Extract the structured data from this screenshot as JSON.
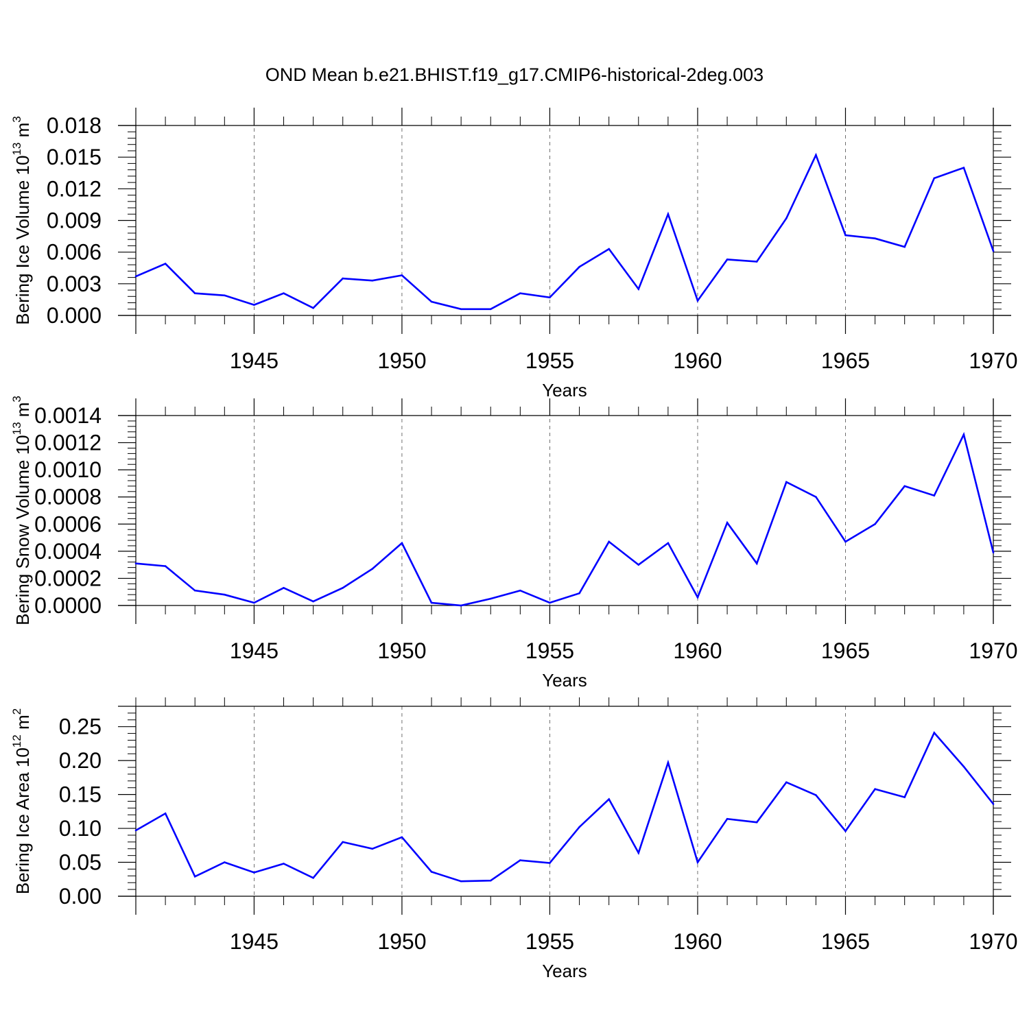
{
  "title": "OND Mean b.e21.BHIST.f19_g17.CMIP6-historical-2deg.003",
  "colors": {
    "series": "#0000ff",
    "axis": "#000000",
    "grid": "#000000"
  },
  "chart_data": [
    {
      "type": "line",
      "ylabel": {
        "text": "Bering Ice Volume 10",
        "exp": "13",
        "unit": " m",
        "unit_exp": "3"
      },
      "xlabel": "Years",
      "xlim": [
        1941,
        1970
      ],
      "ylim": [
        0,
        0.018
      ],
      "yticks": [
        0,
        0.003,
        0.006,
        0.009,
        0.012,
        0.015,
        0.018
      ],
      "ytick_labels": [
        "0.000",
        "0.003",
        "0.006",
        "0.009",
        "0.012",
        "0.015",
        "0.018"
      ],
      "xticks": [
        1945,
        1950,
        1955,
        1960,
        1965,
        1970
      ],
      "grid": "vertical dashed",
      "x": [
        1941,
        1942,
        1943,
        1944,
        1945,
        1946,
        1947,
        1948,
        1949,
        1950,
        1951,
        1952,
        1953,
        1954,
        1955,
        1956,
        1957,
        1958,
        1959,
        1960,
        1961,
        1962,
        1963,
        1964,
        1965,
        1966,
        1967,
        1968,
        1969,
        1970
      ],
      "values": [
        0.0037,
        0.0049,
        0.0021,
        0.0019,
        0.001,
        0.0021,
        0.0007,
        0.0035,
        0.0033,
        0.0038,
        0.0013,
        0.0006,
        0.0006,
        0.0021,
        0.0017,
        0.0046,
        0.0063,
        0.0025,
        0.0096,
        0.0014,
        0.0053,
        0.0051,
        0.0092,
        0.0152,
        0.0076,
        0.0073,
        0.0065,
        0.013,
        0.014,
        0.0061
      ]
    },
    {
      "type": "line",
      "ylabel": {
        "text": "Bering Snow Volume 10",
        "exp": "13",
        "unit": " m",
        "unit_exp": "3"
      },
      "xlabel": "Years",
      "xlim": [
        1941,
        1970
      ],
      "ylim": [
        0,
        0.0014
      ],
      "yticks": [
        0,
        0.0002,
        0.0004,
        0.0006,
        0.0008,
        0.001,
        0.0012,
        0.0014
      ],
      "ytick_labels": [
        "0.0000",
        "0.0002",
        "0.0004",
        "0.0006",
        "0.0008",
        "0.0010",
        "0.0012",
        "0.0014"
      ],
      "xticks": [
        1945,
        1950,
        1955,
        1960,
        1965,
        1970
      ],
      "grid": "vertical dashed",
      "x": [
        1941,
        1942,
        1943,
        1944,
        1945,
        1946,
        1947,
        1948,
        1949,
        1950,
        1951,
        1952,
        1953,
        1954,
        1955,
        1956,
        1957,
        1958,
        1959,
        1960,
        1961,
        1962,
        1963,
        1964,
        1965,
        1966,
        1967,
        1968,
        1969,
        1970
      ],
      "values": [
        0.00031,
        0.00029,
        0.00011,
        8e-05,
        2e-05,
        0.00013,
        3e-05,
        0.00013,
        0.00027,
        0.00046,
        2e-05,
        0.0,
        5e-05,
        0.00011,
        2e-05,
        9e-05,
        0.00047,
        0.0003,
        0.00046,
        6e-05,
        0.00061,
        0.00031,
        0.00091,
        0.0008,
        0.00047,
        0.0006,
        0.00088,
        0.00081,
        0.00126,
        0.00039
      ]
    },
    {
      "type": "line",
      "ylabel": {
        "text": "Bering Ice Area 10",
        "exp": "12",
        "unit": " m",
        "unit_exp": "2"
      },
      "xlabel": "Years",
      "xlim": [
        1941,
        1970
      ],
      "ylim": [
        0,
        0.28
      ],
      "yticks": [
        0,
        0.05,
        0.1,
        0.15,
        0.2,
        0.25
      ],
      "ytick_labels": [
        "0.00",
        "0.05",
        "0.10",
        "0.15",
        "0.20",
        "0.25"
      ],
      "xticks": [
        1945,
        1950,
        1955,
        1960,
        1965,
        1970
      ],
      "grid": "vertical dashed",
      "x": [
        1941,
        1942,
        1943,
        1944,
        1945,
        1946,
        1947,
        1948,
        1949,
        1950,
        1951,
        1952,
        1953,
        1954,
        1955,
        1956,
        1957,
        1958,
        1959,
        1960,
        1961,
        1962,
        1963,
        1964,
        1965,
        1966,
        1967,
        1968,
        1969,
        1970
      ],
      "values": [
        0.097,
        0.122,
        0.029,
        0.05,
        0.035,
        0.048,
        0.027,
        0.08,
        0.07,
        0.087,
        0.036,
        0.022,
        0.023,
        0.053,
        0.049,
        0.102,
        0.143,
        0.064,
        0.197,
        0.05,
        0.114,
        0.109,
        0.168,
        0.149,
        0.096,
        0.158,
        0.146,
        0.241,
        0.191,
        0.136
      ]
    }
  ]
}
